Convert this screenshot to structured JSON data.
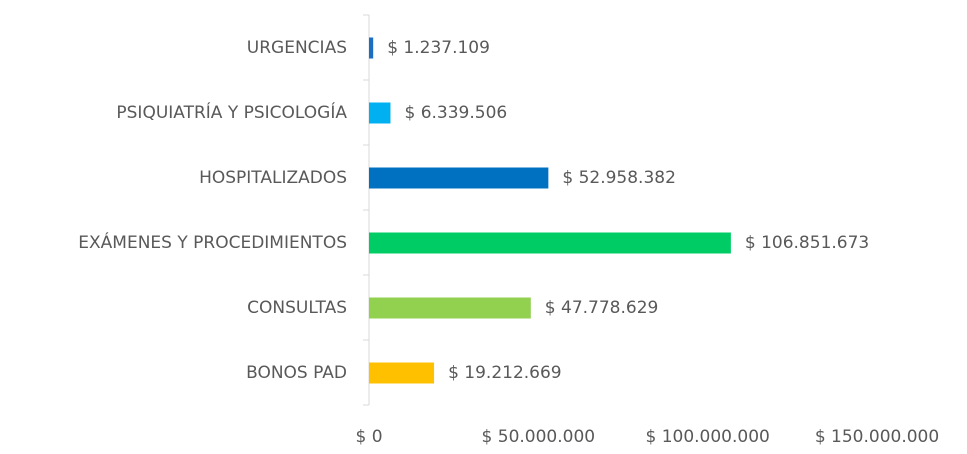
{
  "chart_data": {
    "type": "barh",
    "categories": [
      "URGENCIAS",
      "PSIQUIATRÍA Y PSICOLOGÍA",
      "HOSPITALIZADOS",
      "EXÁMENES Y PROCEDIMIENTOS",
      "CONSULTAS",
      "BONOS PAD"
    ],
    "values": [
      1237109,
      6339506,
      52958382,
      106851673,
      47778629,
      19212669
    ],
    "value_labels": [
      "$ 1.237.109",
      "$ 6.339.506",
      "$ 52.958.382",
      "$ 106.851.673",
      "$ 47.778.629",
      "$ 19.212.669"
    ],
    "colors": [
      "#1b6ec2",
      "#00b0f0",
      "#0070c0",
      "#00cc66",
      "#92d050",
      "#ffc000"
    ],
    "xlim": [
      0,
      150000000
    ],
    "xticks": [
      {
        "value": 0,
        "label": "$ 0"
      },
      {
        "value": 50000000,
        "label": "$ 50.000.000"
      },
      {
        "value": 100000000,
        "label": "$ 100.000.000"
      },
      {
        "value": 150000000,
        "label": "$ 150.000.000"
      }
    ],
    "grid": false
  }
}
